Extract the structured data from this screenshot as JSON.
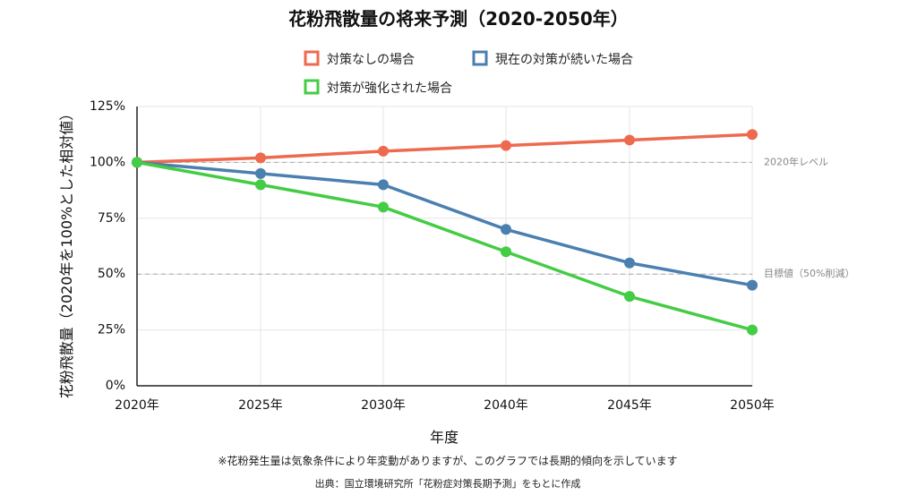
{
  "chart_data": {
    "type": "line",
    "title": "花粉飛散量の将来予測（2020-2050年）",
    "categories": [
      "2020年",
      "2025年",
      "2030年",
      "2040年",
      "2045年",
      "2050年"
    ],
    "series": [
      {
        "name": "対策なしの場合",
        "color": "#ee6a4f",
        "values": [
          100,
          102,
          105,
          107.5,
          110,
          112.5
        ]
      },
      {
        "name": "現在の対策が続いた場合",
        "color": "#4a7fb0",
        "values": [
          100,
          95,
          90,
          70,
          55,
          45
        ]
      },
      {
        "name": "対策が強化された場合",
        "color": "#44cc44",
        "values": [
          100,
          90,
          80,
          60,
          40,
          25
        ]
      }
    ],
    "xlabel": "年度",
    "ylabel": "花粉飛散量（2020年を100%とした相対値）",
    "ylim": [
      0,
      125
    ],
    "yticks": [
      {
        "value": 0,
        "label": "0%"
      },
      {
        "value": 25,
        "label": "25%"
      },
      {
        "value": 50,
        "label": "50%"
      },
      {
        "value": 75,
        "label": "75%"
      },
      {
        "value": 100,
        "label": "100%"
      },
      {
        "value": 125,
        "label": "125%"
      }
    ],
    "reference_lines": [
      {
        "value": 100,
        "label": "2020年レベル"
      },
      {
        "value": 50,
        "label": "目標値（50%削減）"
      }
    ],
    "grid": true,
    "legend_position": "top"
  },
  "note": "※花粉発生量は気象条件により年変動がありますが、このグラフでは長期的傾向を示しています",
  "source": "出典：国立環境研究所「花粉症対策長期予測」をもとに作成",
  "colors": {
    "grid": "#e6e6e6",
    "axis": "#222222",
    "reference": "#aaaaaa"
  }
}
